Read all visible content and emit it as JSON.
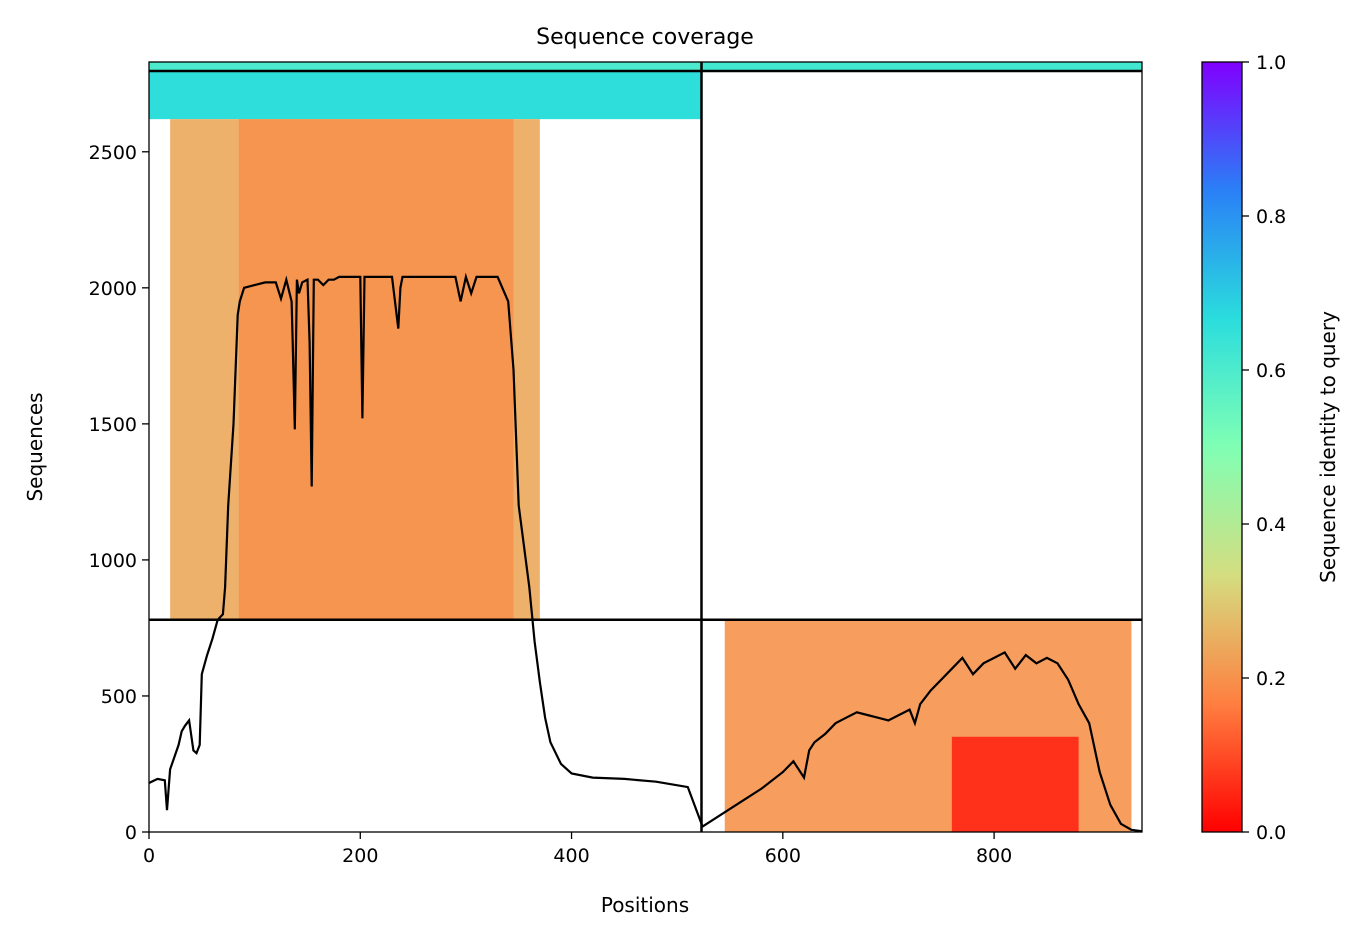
{
  "chart_data": {
    "type": "heatmap",
    "title": "Sequence coverage",
    "xlabel": "Positions",
    "ylabel": "Sequences",
    "xlim": [
      0,
      940
    ],
    "ylim": [
      0,
      2830
    ],
    "x_ticks": [
      0,
      200,
      400,
      600,
      800
    ],
    "y_ticks": [
      0,
      500,
      1000,
      1500,
      2000,
      2500
    ],
    "chain_boundary_x": 523,
    "group_boundaries_y": [
      780,
      2797
    ],
    "colorbar": {
      "label": "Sequence identity to query",
      "range": [
        0,
        1
      ],
      "ticks": [
        0.0,
        0.2,
        0.4,
        0.6,
        0.8,
        1.0
      ],
      "colormap": "rainbow_r",
      "stops": [
        "#ff0000",
        "#ff7f40",
        "#d4dd80",
        "#80ffb4",
        "#2adddd",
        "#2a80f6",
        "#8000ff"
      ]
    },
    "coverage_regions": [
      {
        "x": [
          0,
          523
        ],
        "y": [
          2797,
          2830
        ],
        "identity": 0.6
      },
      {
        "x": [
          523,
          940
        ],
        "y": [
          2797,
          2830
        ],
        "identity": 0.62
      },
      {
        "x": [
          0,
          523
        ],
        "y": [
          2620,
          2797
        ],
        "identity": 0.66
      },
      {
        "x": [
          20,
          370
        ],
        "y": [
          780,
          2620
        ],
        "identity": 0.24
      },
      {
        "x": [
          85,
          345
        ],
        "y": [
          780,
          2620
        ],
        "identity": 0.2
      },
      {
        "x": [
          545,
          930
        ],
        "y": [
          0,
          780
        ],
        "identity": 0.2
      },
      {
        "x": [
          760,
          880
        ],
        "y": [
          0,
          350
        ],
        "identity": 0.05
      }
    ],
    "series": [
      {
        "x": [
          0,
          8,
          15,
          17,
          20,
          28,
          31,
          34,
          38,
          42,
          45,
          48,
          50,
          55,
          60,
          65,
          70,
          72,
          75,
          80,
          84,
          86,
          90,
          100,
          110,
          120,
          125,
          130,
          135,
          136,
          138,
          140,
          142,
          145,
          150,
          152,
          154,
          156,
          160,
          165,
          170,
          175,
          180,
          190,
          200,
          202,
          204,
          206,
          210,
          220,
          230,
          236,
          238,
          240,
          250,
          260,
          270,
          280,
          290,
          295,
          300,
          305,
          310,
          315,
          320,
          330,
          340,
          345,
          350,
          360,
          365,
          370,
          375,
          380,
          390,
          400,
          420,
          450,
          480,
          510,
          523,
          524,
          540,
          560,
          580,
          600,
          610,
          620,
          625,
          630,
          640,
          650,
          660,
          670,
          680,
          690,
          700,
          710,
          720,
          725,
          730,
          740,
          750,
          760,
          770,
          780,
          790,
          800,
          810,
          820,
          830,
          840,
          850,
          860,
          870,
          880,
          890,
          900,
          910,
          920,
          930,
          940
        ],
        "y": [
          180,
          195,
          190,
          80,
          230,
          320,
          370,
          390,
          410,
          300,
          290,
          320,
          580,
          650,
          710,
          780,
          800,
          900,
          1200,
          1500,
          1900,
          1950,
          2000,
          2010,
          2020,
          2020,
          1960,
          2030,
          1950,
          1800,
          1480,
          2030,
          1980,
          2020,
          2030,
          1800,
          1270,
          2030,
          2030,
          2010,
          2030,
          2030,
          2040,
          2040,
          2040,
          1520,
          2040,
          2040,
          2040,
          2040,
          2040,
          1850,
          2000,
          2040,
          2040,
          2040,
          2040,
          2040,
          2040,
          1950,
          2040,
          1980,
          2040,
          2040,
          2040,
          2040,
          1950,
          1700,
          1200,
          900,
          700,
          550,
          420,
          330,
          250,
          215,
          200,
          195,
          185,
          165,
          30,
          20,
          60,
          110,
          160,
          220,
          260,
          200,
          300,
          330,
          360,
          400,
          420,
          440,
          430,
          420,
          410,
          430,
          450,
          400,
          470,
          520,
          560,
          600,
          640,
          580,
          620,
          640,
          660,
          600,
          650,
          620,
          640,
          620,
          560,
          470,
          400,
          220,
          100,
          30,
          8,
          3
        ]
      }
    ]
  }
}
